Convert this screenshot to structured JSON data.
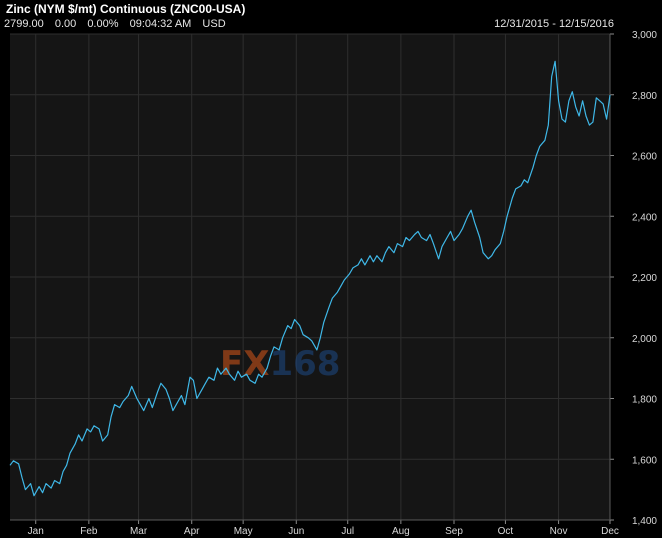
{
  "header": {
    "title": "Zinc (NYM $/mt) Continuous (ZNC00-USA)",
    "last": "2799.00",
    "change": "0.00",
    "change_pct": "0.00%",
    "time": "09:04:32 AM",
    "currency": "USD",
    "date_range": "12/31/2015 - 12/15/2016"
  },
  "watermark": {
    "prefix": "FX",
    "suffix": "168"
  },
  "colors": {
    "line": "#3fb8e8",
    "background": "#000000",
    "plot_bg": "#151515",
    "grid": "#2e2e2e",
    "watermark_fx": "#d8581a",
    "watermark_num": "#1e4a86"
  },
  "chart_data": {
    "type": "line",
    "title": "Zinc (NYM $/mt) Continuous (ZNC00-USA)",
    "xlabel": "",
    "ylabel": "",
    "ylim": [
      1400,
      3000
    ],
    "yticks": [
      1400,
      1600,
      1800,
      2000,
      2200,
      2400,
      2600,
      2800,
      3000
    ],
    "ytick_labels": [
      "1,400",
      "1,600",
      "1,800",
      "2,000",
      "2,200",
      "2,400",
      "2,600",
      "2,800",
      "3,000"
    ],
    "xlim": [
      "2015-12-31",
      "2016-12-15"
    ],
    "xticks": [
      {
        "label": "Jan",
        "date": "2016-01-15"
      },
      {
        "label": "Feb",
        "date": "2016-02-15"
      },
      {
        "label": "Mar",
        "date": "2016-03-15"
      },
      {
        "label": "Apr",
        "date": "2016-04-15"
      },
      {
        "label": "May",
        "date": "2016-05-15"
      },
      {
        "label": "Jun",
        "date": "2016-06-15"
      },
      {
        "label": "Jul",
        "date": "2016-07-15"
      },
      {
        "label": "Aug",
        "date": "2016-08-15"
      },
      {
        "label": "Sep",
        "date": "2016-09-15"
      },
      {
        "label": "Oct",
        "date": "2016-10-15"
      },
      {
        "label": "Nov",
        "date": "2016-11-15"
      },
      {
        "label": "Dec",
        "date": "2016-12-15"
      }
    ],
    "grid": true,
    "series": [
      {
        "points": [
          [
            "2015-12-31",
            1580
          ],
          [
            "2016-01-02",
            1595
          ],
          [
            "2016-01-05",
            1585
          ],
          [
            "2016-01-07",
            1540
          ],
          [
            "2016-01-09",
            1500
          ],
          [
            "2016-01-12",
            1520
          ],
          [
            "2016-01-14",
            1480
          ],
          [
            "2016-01-17",
            1510
          ],
          [
            "2016-01-19",
            1490
          ],
          [
            "2016-01-21",
            1520
          ],
          [
            "2016-01-24",
            1505
          ],
          [
            "2016-01-26",
            1530
          ],
          [
            "2016-01-29",
            1520
          ],
          [
            "2016-01-31",
            1560
          ],
          [
            "2016-02-02",
            1580
          ],
          [
            "2016-02-04",
            1620
          ],
          [
            "2016-02-07",
            1650
          ],
          [
            "2016-02-09",
            1680
          ],
          [
            "2016-02-11",
            1660
          ],
          [
            "2016-02-14",
            1700
          ],
          [
            "2016-02-16",
            1690
          ],
          [
            "2016-02-18",
            1710
          ],
          [
            "2016-02-21",
            1700
          ],
          [
            "2016-02-23",
            1660
          ],
          [
            "2016-02-26",
            1680
          ],
          [
            "2016-02-28",
            1740
          ],
          [
            "2016-03-01",
            1780
          ],
          [
            "2016-03-04",
            1770
          ],
          [
            "2016-03-06",
            1790
          ],
          [
            "2016-03-09",
            1810
          ],
          [
            "2016-03-11",
            1840
          ],
          [
            "2016-03-14",
            1800
          ],
          [
            "2016-03-16",
            1780
          ],
          [
            "2016-03-18",
            1760
          ],
          [
            "2016-03-21",
            1800
          ],
          [
            "2016-03-23",
            1770
          ],
          [
            "2016-03-26",
            1820
          ],
          [
            "2016-03-28",
            1850
          ],
          [
            "2016-03-31",
            1830
          ],
          [
            "2016-04-02",
            1800
          ],
          [
            "2016-04-04",
            1760
          ],
          [
            "2016-04-07",
            1790
          ],
          [
            "2016-04-09",
            1810
          ],
          [
            "2016-04-11",
            1780
          ],
          [
            "2016-04-14",
            1870
          ],
          [
            "2016-04-16",
            1860
          ],
          [
            "2016-04-18",
            1800
          ],
          [
            "2016-04-21",
            1830
          ],
          [
            "2016-04-23",
            1850
          ],
          [
            "2016-04-25",
            1870
          ],
          [
            "2016-04-28",
            1860
          ],
          [
            "2016-04-30",
            1900
          ],
          [
            "2016-05-02",
            1880
          ],
          [
            "2016-05-05",
            1900
          ],
          [
            "2016-05-07",
            1880
          ],
          [
            "2016-05-10",
            1860
          ],
          [
            "2016-05-12",
            1890
          ],
          [
            "2016-05-14",
            1870
          ],
          [
            "2016-05-17",
            1880
          ],
          [
            "2016-05-19",
            1860
          ],
          [
            "2016-05-22",
            1850
          ],
          [
            "2016-05-24",
            1880
          ],
          [
            "2016-05-26",
            1870
          ],
          [
            "2016-05-29",
            1900
          ],
          [
            "2016-05-31",
            1940
          ],
          [
            "2016-06-02",
            1970
          ],
          [
            "2016-06-05",
            1960
          ],
          [
            "2016-06-07",
            2000
          ],
          [
            "2016-06-10",
            2040
          ],
          [
            "2016-06-12",
            2030
          ],
          [
            "2016-06-14",
            2060
          ],
          [
            "2016-06-17",
            2040
          ],
          [
            "2016-06-19",
            2010
          ],
          [
            "2016-06-22",
            2000
          ],
          [
            "2016-06-24",
            1990
          ],
          [
            "2016-06-27",
            1960
          ],
          [
            "2016-06-29",
            2000
          ],
          [
            "2016-07-01",
            2050
          ],
          [
            "2016-07-04",
            2100
          ],
          [
            "2016-07-06",
            2130
          ],
          [
            "2016-07-09",
            2150
          ],
          [
            "2016-07-11",
            2170
          ],
          [
            "2016-07-13",
            2190
          ],
          [
            "2016-07-16",
            2210
          ],
          [
            "2016-07-18",
            2230
          ],
          [
            "2016-07-21",
            2240
          ],
          [
            "2016-07-23",
            2260
          ],
          [
            "2016-07-25",
            2240
          ],
          [
            "2016-07-28",
            2270
          ],
          [
            "2016-07-30",
            2250
          ],
          [
            "2016-08-01",
            2270
          ],
          [
            "2016-08-04",
            2250
          ],
          [
            "2016-08-06",
            2280
          ],
          [
            "2016-08-08",
            2300
          ],
          [
            "2016-08-11",
            2280
          ],
          [
            "2016-08-13",
            2310
          ],
          [
            "2016-08-16",
            2300
          ],
          [
            "2016-08-18",
            2330
          ],
          [
            "2016-08-20",
            2320
          ],
          [
            "2016-08-23",
            2340
          ],
          [
            "2016-08-25",
            2350
          ],
          [
            "2016-08-27",
            2330
          ],
          [
            "2016-08-30",
            2320
          ],
          [
            "2016-09-01",
            2340
          ],
          [
            "2016-09-03",
            2310
          ],
          [
            "2016-09-06",
            2260
          ],
          [
            "2016-09-08",
            2300
          ],
          [
            "2016-09-11",
            2330
          ],
          [
            "2016-09-13",
            2350
          ],
          [
            "2016-09-15",
            2320
          ],
          [
            "2016-09-18",
            2340
          ],
          [
            "2016-09-20",
            2360
          ],
          [
            "2016-09-23",
            2400
          ],
          [
            "2016-09-25",
            2420
          ],
          [
            "2016-09-27",
            2380
          ],
          [
            "2016-09-30",
            2330
          ],
          [
            "2016-10-02",
            2280
          ],
          [
            "2016-10-05",
            2260
          ],
          [
            "2016-10-07",
            2270
          ],
          [
            "2016-10-09",
            2290
          ],
          [
            "2016-10-12",
            2310
          ],
          [
            "2016-10-14",
            2350
          ],
          [
            "2016-10-16",
            2400
          ],
          [
            "2016-10-19",
            2460
          ],
          [
            "2016-10-21",
            2490
          ],
          [
            "2016-10-24",
            2500
          ],
          [
            "2016-10-26",
            2520
          ],
          [
            "2016-10-28",
            2510
          ],
          [
            "2016-10-31",
            2560
          ],
          [
            "2016-11-02",
            2600
          ],
          [
            "2016-11-04",
            2630
          ],
          [
            "2016-11-07",
            2650
          ],
          [
            "2016-11-09",
            2700
          ],
          [
            "2016-11-11",
            2860
          ],
          [
            "2016-11-13",
            2910
          ],
          [
            "2016-11-15",
            2780
          ],
          [
            "2016-11-17",
            2720
          ],
          [
            "2016-11-19",
            2710
          ],
          [
            "2016-11-21",
            2780
          ],
          [
            "2016-11-23",
            2810
          ],
          [
            "2016-11-25",
            2760
          ],
          [
            "2016-11-27",
            2730
          ],
          [
            "2016-11-29",
            2780
          ],
          [
            "2016-12-01",
            2730
          ],
          [
            "2016-12-03",
            2700
          ],
          [
            "2016-12-05",
            2710
          ],
          [
            "2016-12-07",
            2790
          ],
          [
            "2016-12-09",
            2780
          ],
          [
            "2016-12-11",
            2770
          ],
          [
            "2016-12-13",
            2720
          ],
          [
            "2016-12-15",
            2799
          ]
        ]
      }
    ]
  }
}
